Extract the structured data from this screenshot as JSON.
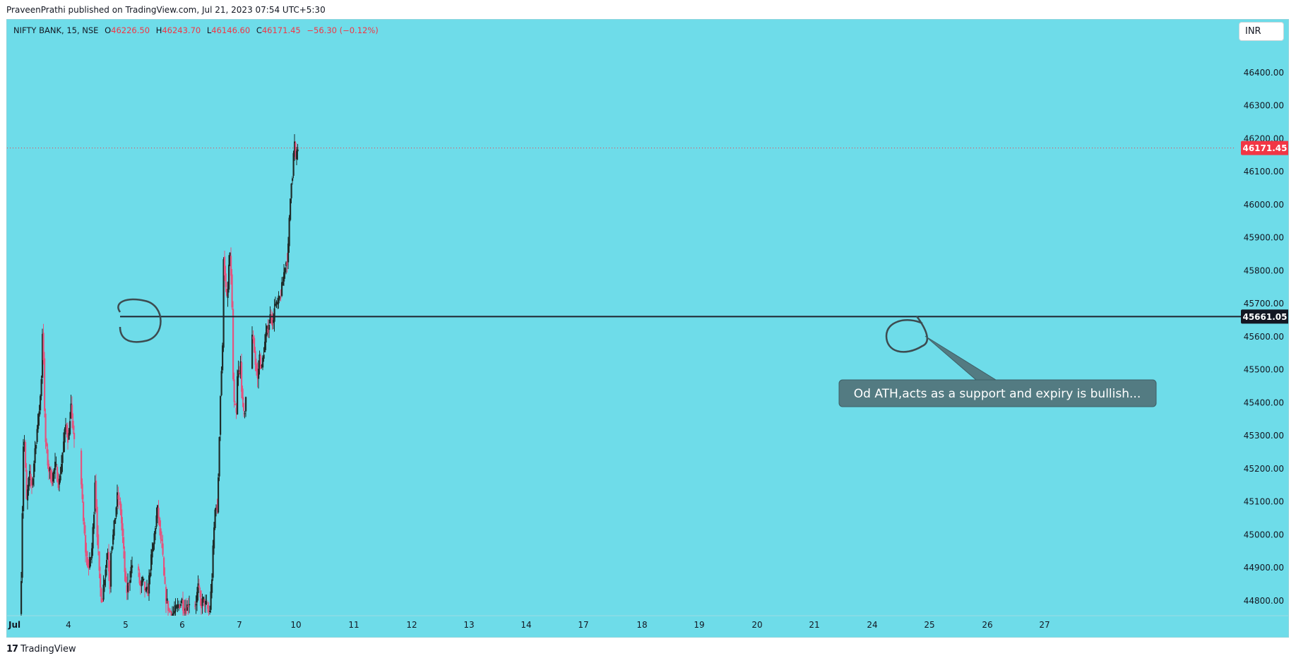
{
  "header": {
    "published": "PraveenPrathi published on TradingView.com, Jul 21, 2023 07:54 UTC+5:30"
  },
  "legend": {
    "symbol": "NIFTY BANK, 15, NSE",
    "o_label": "O",
    "o": "46226.50",
    "h_label": "H",
    "h": "46243.70",
    "l_label": "L",
    "l": "46146.60",
    "c_label": "C",
    "c": "46171.45",
    "change": "−56.30 (−0.12%)"
  },
  "currency_button": "INR",
  "footer": {
    "logo": "17",
    "brand": "TradingView"
  },
  "annotation": "Od ATH,acts as a support and expiry is bullish...",
  "colors": {
    "background": "#6edce9",
    "up": "#1f2d2b",
    "down": "#e2557f",
    "price_tag": "#f23645",
    "level_tag": "#131722",
    "callout": "#537b82"
  },
  "chart_data": {
    "type": "candlestick",
    "symbol": "NIFTY BANK",
    "interval": "15",
    "exchange": "NSE",
    "y_ticks": [
      44800,
      44900,
      45000,
      45100,
      45200,
      45300,
      45400,
      45500,
      45600,
      45700,
      45800,
      45900,
      46000,
      46100,
      46200,
      46300,
      46400
    ],
    "y_tick_labels": [
      "44800.00",
      "44900.00",
      "45000.00",
      "45100.00",
      "45200.00",
      "45300.00",
      "45400.00",
      "45500.00",
      "45600.00",
      "45700.00",
      "45800.00",
      "45900.00",
      "46000.00",
      "46100.00",
      "46200.00",
      "46300.00",
      "46400.00"
    ],
    "ylim": [
      44755,
      46560
    ],
    "x_ticks": [
      "Jul",
      "4",
      "5",
      "6",
      "7",
      "10",
      "11",
      "12",
      "13",
      "14",
      "17",
      "18",
      "19",
      "20",
      "21",
      "24",
      "25",
      "26",
      "27"
    ],
    "last_price": 46171.45,
    "last_price_label": "46171.45",
    "horizontal_line": {
      "value": 45661.05,
      "label": "45661.05"
    },
    "daily_path": [
      [
        [
          0,
          44760
        ],
        [
          3,
          44880
        ],
        [
          10,
          45340
        ],
        [
          18,
          45100
        ],
        [
          26,
          45180
        ],
        [
          34,
          45150
        ],
        [
          42,
          45260
        ],
        [
          50,
          45340
        ],
        [
          56,
          45400
        ],
        [
          60,
          45480
        ],
        [
          64,
          45660
        ],
        [
          70,
          45300
        ],
        [
          80,
          45200
        ],
        [
          90,
          45170
        ],
        [
          100,
          45210
        ],
        [
          110,
          45150
        ],
        [
          120,
          45250
        ],
        [
          130,
          45340
        ],
        [
          137,
          45280
        ],
        [
          141,
          45360
        ],
        [
          144,
          45390
        ],
        [
          146,
          45350
        ],
        [
          150,
          45300
        ]
      ],
      [
        [
          0,
          45220
        ],
        [
          8,
          45050
        ],
        [
          16,
          44940
        ],
        [
          24,
          44900
        ],
        [
          32,
          44940
        ],
        [
          38,
          45050
        ],
        [
          42,
          45170
        ],
        [
          48,
          45010
        ],
        [
          55,
          44850
        ],
        [
          62,
          44800
        ],
        [
          70,
          44890
        ],
        [
          78,
          44950
        ],
        [
          84,
          44850
        ],
        [
          87,
          44960
        ],
        [
          94,
          45000
        ],
        [
          100,
          45070
        ],
        [
          106,
          45120
        ],
        [
          114,
          45080
        ],
        [
          122,
          44960
        ],
        [
          130,
          44820
        ],
        [
          138,
          44860
        ],
        [
          146,
          44910
        ]
      ],
      [
        [
          0,
          44900
        ],
        [
          8,
          44840
        ],
        [
          16,
          44860
        ],
        [
          24,
          44820
        ],
        [
          30,
          44830
        ],
        [
          36,
          44900
        ],
        [
          44,
          44960
        ],
        [
          52,
          45040
        ],
        [
          58,
          45080
        ],
        [
          64,
          45000
        ],
        [
          70,
          44960
        ],
        [
          76,
          44850
        ],
        [
          82,
          44800
        ],
        [
          90,
          44770
        ],
        [
          100,
          44760
        ],
        [
          110,
          44770
        ],
        [
          118,
          44790
        ],
        [
          126,
          44800
        ],
        [
          132,
          44780
        ],
        [
          140,
          44780
        ],
        [
          146,
          44800
        ]
      ],
      [
        [
          0,
          44780
        ],
        [
          6,
          44800
        ],
        [
          12,
          44840
        ],
        [
          20,
          44790
        ],
        [
          28,
          44800
        ],
        [
          36,
          44780
        ],
        [
          44,
          44760
        ],
        [
          50,
          44850
        ],
        [
          56,
          45000
        ],
        [
          62,
          45110
        ],
        [
          66,
          45060
        ],
        [
          70,
          45220
        ],
        [
          74,
          45400
        ],
        [
          78,
          45500
        ],
        [
          81,
          45560
        ],
        [
          84,
          45850
        ],
        [
          88,
          45780
        ],
        [
          92,
          45700
        ],
        [
          96,
          45740
        ],
        [
          100,
          45840
        ],
        [
          104,
          45830
        ],
        [
          108,
          45680
        ],
        [
          112,
          45400
        ],
        [
          116,
          45380
        ],
        [
          120,
          45360
        ],
        [
          124,
          45510
        ],
        [
          128,
          45470
        ],
        [
          132,
          45520
        ],
        [
          136,
          45430
        ],
        [
          140,
          45350
        ],
        [
          144,
          45380
        ],
        [
          146,
          45420
        ]
      ],
      [
        [
          0,
          45590
        ],
        [
          6,
          45600
        ],
        [
          12,
          45520
        ],
        [
          18,
          45470
        ],
        [
          24,
          45540
        ],
        [
          30,
          45500
        ],
        [
          36,
          45560
        ],
        [
          42,
          45600
        ],
        [
          48,
          45630
        ],
        [
          54,
          45660
        ],
        [
          58,
          45680
        ],
        [
          62,
          45620
        ],
        [
          66,
          45700
        ],
        [
          72,
          45690
        ],
        [
          80,
          45710
        ],
        [
          88,
          45750
        ],
        [
          96,
          45820
        ],
        [
          104,
          45840
        ],
        [
          110,
          46000
        ],
        [
          114,
          46080
        ],
        [
          118,
          46100
        ],
        [
          122,
          46200
        ],
        [
          126,
          46130
        ],
        [
          130,
          46171
        ]
      ]
    ]
  }
}
